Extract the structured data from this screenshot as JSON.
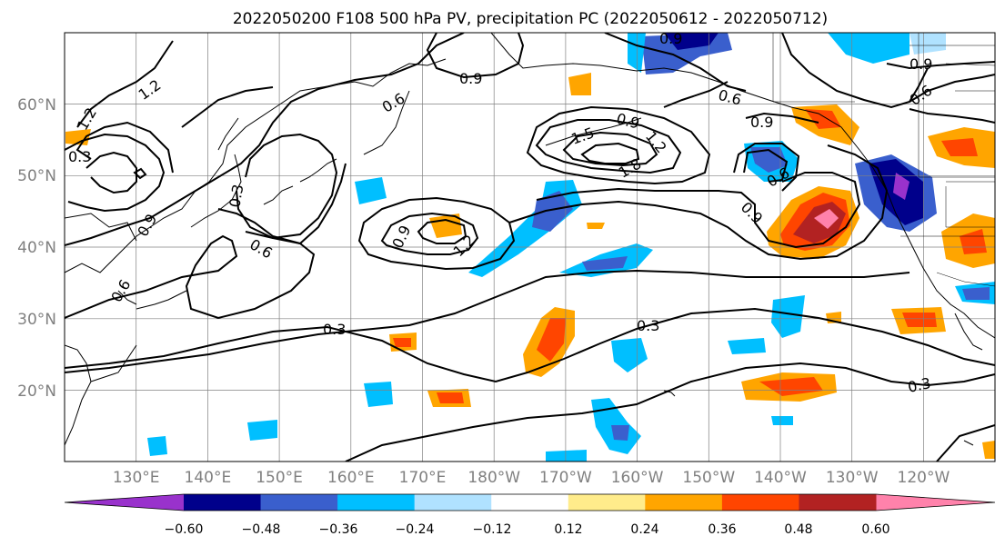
{
  "title": "2022050200 F108 500 hPa PV, precipitation PC (2022050612 - 2022050712)",
  "lat_labels": [
    "60°N",
    "50°N",
    "40°N",
    "30°N",
    "20°N"
  ],
  "lon_labels": [
    "130°E",
    "140°E",
    "150°E",
    "160°E",
    "170°E",
    "180°W",
    "170°W",
    "160°W",
    "150°W",
    "140°W",
    "130°W",
    "120°W"
  ],
  "colorbar": {
    "colors": [
      "#9932cc",
      "#00008b",
      "#3a5fcd",
      "#00bfff",
      "#b0e2ff",
      "#ffffff",
      "#ffec8b",
      "#ffa500",
      "#ff4500",
      "#b22222",
      "#ff82ab"
    ],
    "tick_labels": [
      "−0.60",
      "−0.48",
      "−0.36",
      "−0.24",
      "−0.12",
      "0.12",
      "0.24",
      "0.36",
      "0.48",
      "0.60"
    ]
  },
  "contour_labels": [
    "1.2",
    "1.2",
    "0.9",
    "0.6",
    "0.6",
    "0.3",
    "0.9",
    "0.6",
    "0.9",
    "0.9",
    "1.5",
    "1.8",
    "1.2",
    "0.9",
    "1.2",
    "0.9",
    "0.6",
    "0.9",
    "0.6",
    "0.9",
    "0.6",
    "0.3",
    "0.3",
    "0.3",
    "0.3"
  ]
}
